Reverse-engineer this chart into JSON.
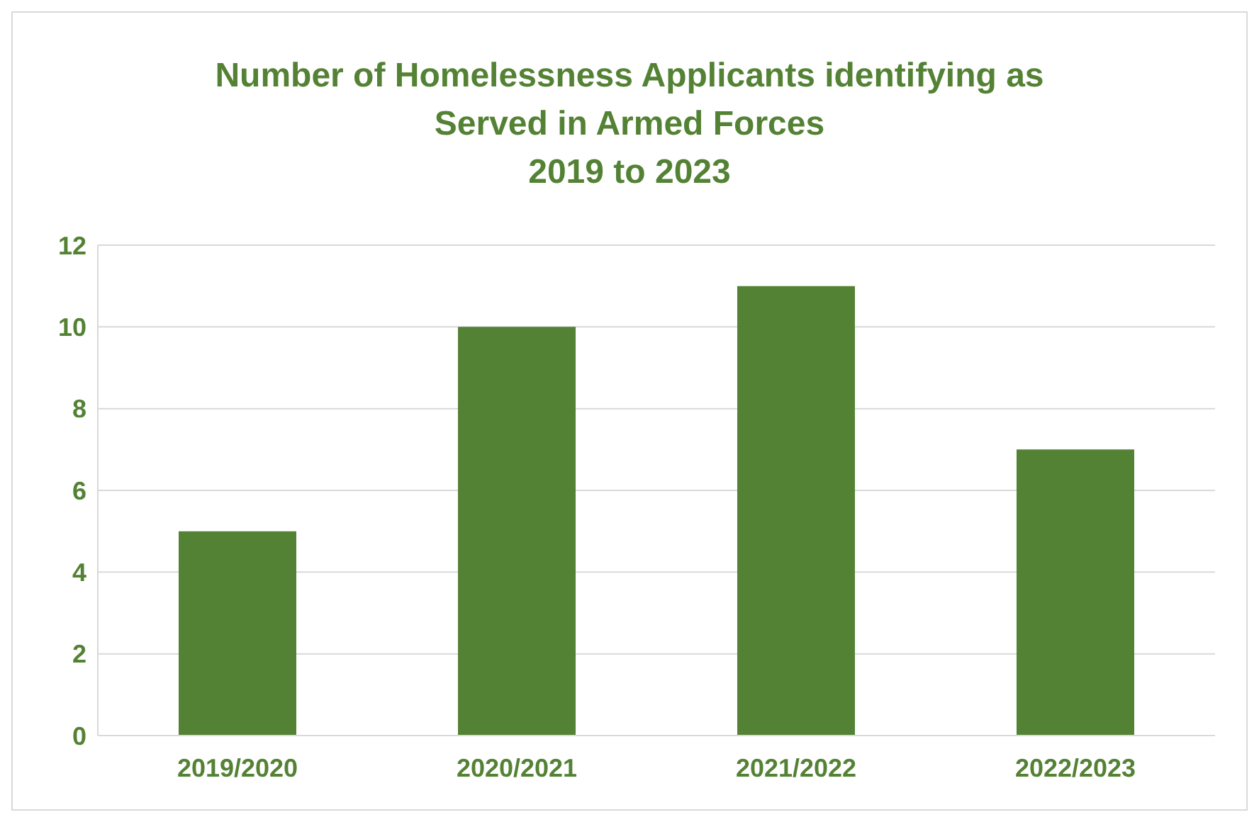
{
  "chart_data": {
    "type": "bar",
    "title": "Number of Homelessness Applicants identifying as\nServed in Armed Forces\n2019 to 2023",
    "categories": [
      "2019/2020",
      "2020/2021",
      "2021/2022",
      "2022/2023"
    ],
    "values": [
      5,
      10,
      11,
      7
    ],
    "color": "#548235",
    "ylim": [
      0,
      12
    ],
    "yticks": [
      0,
      2,
      4,
      6,
      8,
      10,
      12
    ],
    "grid": "y"
  }
}
